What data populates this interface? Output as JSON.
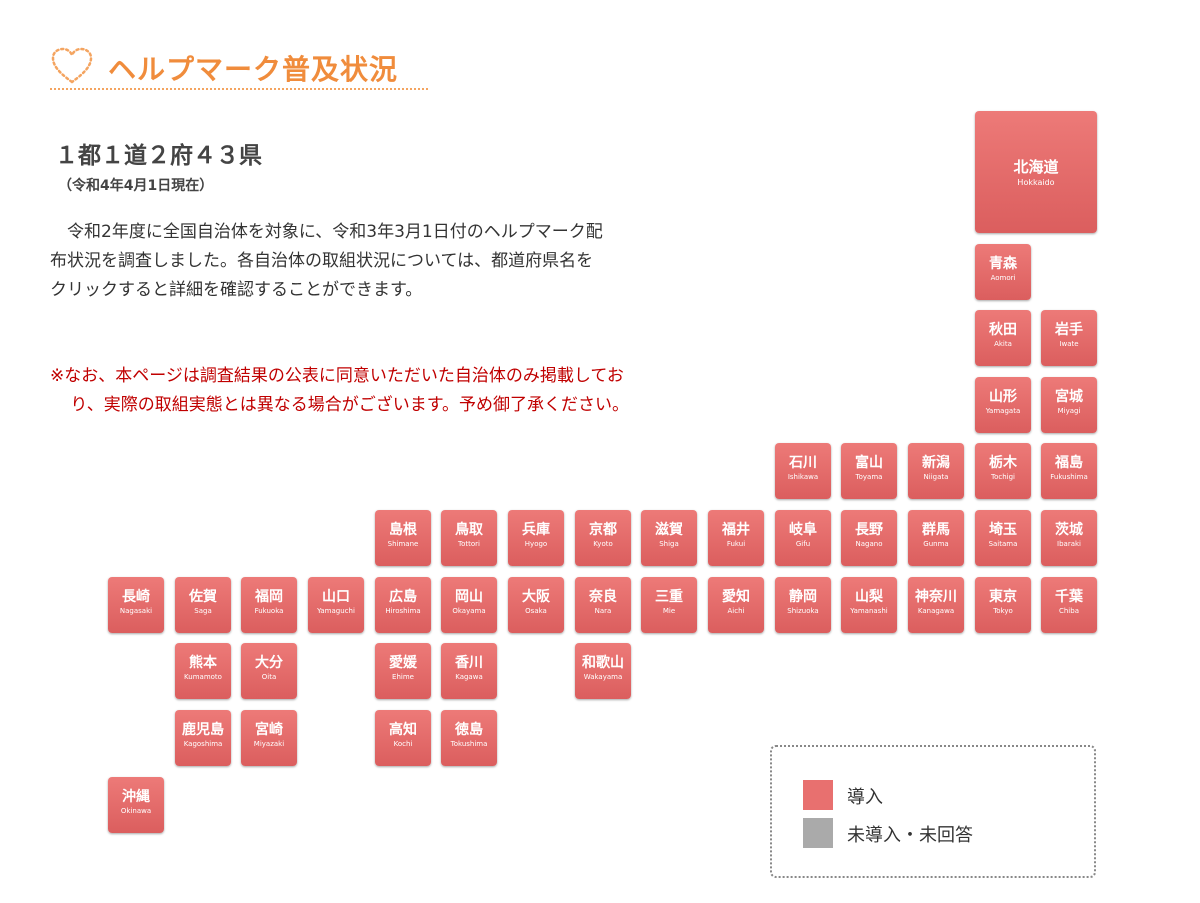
{
  "header": {
    "title": "ヘルプマーク普及状況"
  },
  "summary": {
    "count": "１都１道２府４３県",
    "date": "（令和4年4月1日現在）",
    "body": "令和2年度に全国自治体を対象に、令和3年3月1日付のヘルプマーク配布状況を調査しました。各自治体の取組状況については、都道府県名をクリックすると詳細を確認することができます。",
    "note": "※なお、本ページは調査結果の公表に同意いただいた自治体のみ掲載しており、実際の取組実態とは異なる場合がございます。予め御了承ください。"
  },
  "colors": {
    "introduced": "#e8706f",
    "not_introduced": "#aaaaaa",
    "heading": "#f08c3c",
    "note": "#c00000"
  },
  "prefectures": [
    {
      "jp": "北海道",
      "en": "Hokkaido",
      "status": "introduced"
    },
    {
      "jp": "青森",
      "en": "Aomori",
      "status": "introduced"
    },
    {
      "jp": "秋田",
      "en": "Akita",
      "status": "introduced"
    },
    {
      "jp": "岩手",
      "en": "Iwate",
      "status": "introduced"
    },
    {
      "jp": "山形",
      "en": "Yamagata",
      "status": "introduced"
    },
    {
      "jp": "宮城",
      "en": "Miyagi",
      "status": "introduced"
    },
    {
      "jp": "石川",
      "en": "Ishikawa",
      "status": "introduced"
    },
    {
      "jp": "富山",
      "en": "Toyama",
      "status": "introduced"
    },
    {
      "jp": "新潟",
      "en": "Niigata",
      "status": "introduced"
    },
    {
      "jp": "栃木",
      "en": "Tochigi",
      "status": "introduced"
    },
    {
      "jp": "福島",
      "en": "Fukushima",
      "status": "introduced"
    },
    {
      "jp": "島根",
      "en": "Shimane",
      "status": "introduced"
    },
    {
      "jp": "鳥取",
      "en": "Tottori",
      "status": "introduced"
    },
    {
      "jp": "兵庫",
      "en": "Hyogo",
      "status": "introduced"
    },
    {
      "jp": "京都",
      "en": "Kyoto",
      "status": "introduced"
    },
    {
      "jp": "滋賀",
      "en": "Shiga",
      "status": "introduced"
    },
    {
      "jp": "福井",
      "en": "Fukui",
      "status": "introduced"
    },
    {
      "jp": "岐阜",
      "en": "Gifu",
      "status": "introduced"
    },
    {
      "jp": "長野",
      "en": "Nagano",
      "status": "introduced"
    },
    {
      "jp": "群馬",
      "en": "Gunma",
      "status": "introduced"
    },
    {
      "jp": "埼玉",
      "en": "Saitama",
      "status": "introduced"
    },
    {
      "jp": "茨城",
      "en": "Ibaraki",
      "status": "introduced"
    },
    {
      "jp": "長崎",
      "en": "Nagasaki",
      "status": "introduced"
    },
    {
      "jp": "佐賀",
      "en": "Saga",
      "status": "introduced"
    },
    {
      "jp": "福岡",
      "en": "Fukuoka",
      "status": "introduced"
    },
    {
      "jp": "山口",
      "en": "Yamaguchi",
      "status": "introduced"
    },
    {
      "jp": "広島",
      "en": "Hiroshima",
      "status": "introduced"
    },
    {
      "jp": "岡山",
      "en": "Okayama",
      "status": "introduced"
    },
    {
      "jp": "大阪",
      "en": "Osaka",
      "status": "introduced"
    },
    {
      "jp": "奈良",
      "en": "Nara",
      "status": "introduced"
    },
    {
      "jp": "三重",
      "en": "Mie",
      "status": "introduced"
    },
    {
      "jp": "愛知",
      "en": "Aichi",
      "status": "introduced"
    },
    {
      "jp": "静岡",
      "en": "Shizuoka",
      "status": "introduced"
    },
    {
      "jp": "山梨",
      "en": "Yamanashi",
      "status": "introduced"
    },
    {
      "jp": "神奈川",
      "en": "Kanagawa",
      "status": "introduced"
    },
    {
      "jp": "東京",
      "en": "Tokyo",
      "status": "introduced"
    },
    {
      "jp": "千葉",
      "en": "Chiba",
      "status": "introduced"
    },
    {
      "jp": "熊本",
      "en": "Kumamoto",
      "status": "introduced"
    },
    {
      "jp": "大分",
      "en": "Oita",
      "status": "introduced"
    },
    {
      "jp": "愛媛",
      "en": "Ehime",
      "status": "introduced"
    },
    {
      "jp": "香川",
      "en": "Kagawa",
      "status": "introduced"
    },
    {
      "jp": "和歌山",
      "en": "Wakayama",
      "status": "introduced"
    },
    {
      "jp": "鹿児島",
      "en": "Kagoshima",
      "status": "introduced"
    },
    {
      "jp": "宮崎",
      "en": "Miyazaki",
      "status": "introduced"
    },
    {
      "jp": "高知",
      "en": "Kochi",
      "status": "introduced"
    },
    {
      "jp": "徳島",
      "en": "Tokushima",
      "status": "introduced"
    },
    {
      "jp": "沖縄",
      "en": "Okinawa",
      "status": "introduced"
    }
  ],
  "legend": {
    "introduced_label": "導入",
    "not_introduced_label": "未導入・未回答"
  }
}
